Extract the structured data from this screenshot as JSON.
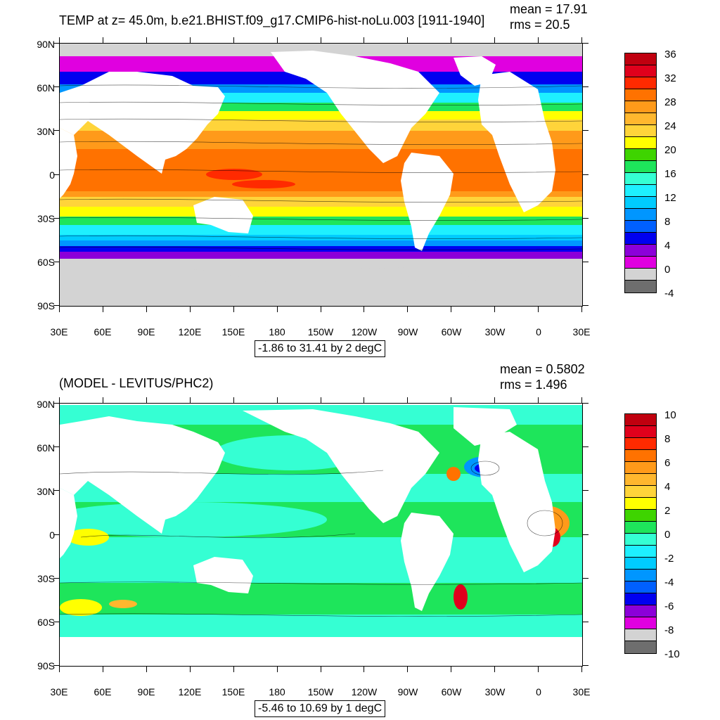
{
  "top": {
    "title": "TEMP at z=  45.0m, b.e21.BHIST.f09_g17.CMIP6-hist-noLu.003 [1911-1940]",
    "mean": "mean = 17.91",
    "rms": "rms = 20.5",
    "range_info": "-1.86 to 31.41 by 2 degC",
    "legend_labels": [
      "36",
      "32",
      "28",
      "24",
      "20",
      "16",
      "12",
      "8",
      "4",
      "0",
      "-4"
    ],
    "legend_colors": [
      "#c0000f",
      "#e0001c",
      "#ff2a00",
      "#ff7200",
      "#ff9a1a",
      "#ffb72e",
      "#ffd43a",
      "#ffff00",
      "#3ed400",
      "#1ee55b",
      "#35ffd3",
      "#1ef0ff",
      "#00ccff",
      "#0096ff",
      "#0060ff",
      "#0000f0",
      "#8c00d9",
      "#e000e0",
      "#d3d3d3",
      "#6e6e6e"
    ]
  },
  "bottom": {
    "title": "(MODEL - LEVITUS/PHC2)",
    "mean": "mean = 0.5802",
    "rms": "rms = 1.496",
    "range_info": "-5.46 to 10.69 by 1 degC",
    "legend_labels": [
      "10",
      "8",
      "6",
      "4",
      "2",
      "0",
      "-2",
      "-4",
      "-6",
      "-8",
      "-10"
    ],
    "legend_colors": [
      "#c0000f",
      "#e0001c",
      "#ff2a00",
      "#ff7200",
      "#ff9a1a",
      "#ffb72e",
      "#ffd43a",
      "#ffff00",
      "#3ed400",
      "#1ee55b",
      "#35ffd3",
      "#1ef0ff",
      "#00ccff",
      "#0096ff",
      "#0060ff",
      "#0000f0",
      "#8c00d9",
      "#e000e0",
      "#d3d3d3",
      "#6e6e6e"
    ]
  },
  "axes": {
    "lat_labels": [
      "90N",
      "60N",
      "30N",
      "0",
      "30S",
      "60S",
      "90S"
    ],
    "lon_labels": [
      "30E",
      "60E",
      "90E",
      "120E",
      "150E",
      "180",
      "150W",
      "120W",
      "90W",
      "60W",
      "30W",
      "0",
      "30E"
    ]
  },
  "colors": {
    "land": "#ffffff",
    "ice": "#d3d3d3",
    "contour": "#000000"
  }
}
